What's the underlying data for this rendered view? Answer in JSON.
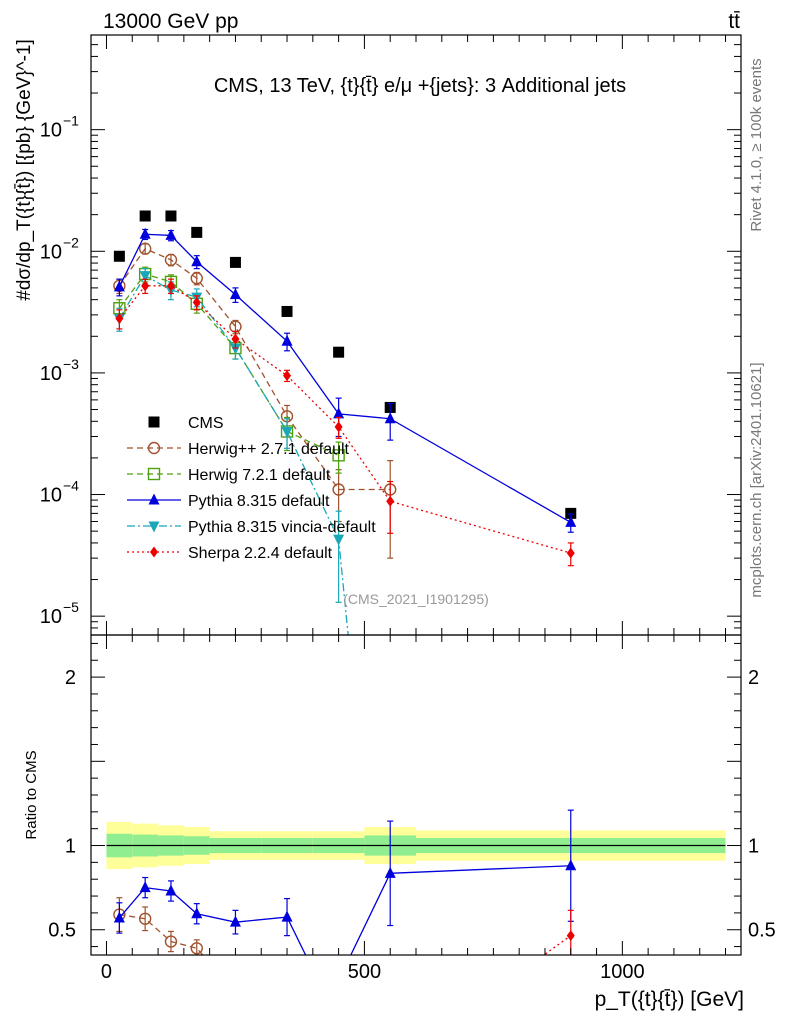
{
  "header": {
    "left": "13000 GeV pp",
    "right": "tt̄"
  },
  "side_labels": {
    "rivet": "Rivet 4.1.0, ≥ 100k events",
    "mcplots": "mcplots.cern.ch [arXiv:2401.10621]"
  },
  "chart_data": [
    {
      "type": "line",
      "panel": "main",
      "title": "CMS, 13 TeV, {t}{t̄} e/μ +{jets}: 3 Additional jets",
      "ylabel": "#dσ/dp_T({t}{t̄}) [{pb} {GeV}^-1]",
      "yscale": "log",
      "ylim": [
        7e-06,
        0.6
      ],
      "xlim": [
        -30,
        1230
      ],
      "watermark": "(CMS_2021_I1901295)",
      "legend_position": "lower-left",
      "x_ticks": [
        0,
        500,
        1000
      ],
      "y_ticks": [
        {
          "value": 1e-05,
          "label": "10",
          "exp": "−5"
        },
        {
          "value": 0.0001,
          "label": "10",
          "exp": "−4"
        },
        {
          "value": 0.001,
          "label": "10",
          "exp": "−3"
        },
        {
          "value": 0.01,
          "label": "10",
          "exp": "−2"
        },
        {
          "value": 0.1,
          "label": "10",
          "exp": "−1"
        }
      ],
      "series": [
        {
          "name": "CMS",
          "color": "#000000",
          "marker": "square",
          "line": "none",
          "x": [
            25,
            75,
            125,
            175,
            250,
            350,
            450,
            550,
            900
          ],
          "y": [
            0.0091,
            0.0195,
            0.0195,
            0.0143,
            0.0081,
            0.0032,
            0.00148,
            0.00052,
            7e-05
          ],
          "xerr": [
            25,
            25,
            25,
            25,
            50,
            50,
            50,
            50,
            300
          ]
        },
        {
          "name": "Herwig++ 2.7.1 default",
          "color": "#a0522d",
          "marker": "circle-open",
          "line": "dashed",
          "x": [
            25,
            75,
            125,
            175,
            250,
            350,
            450,
            550
          ],
          "y": [
            0.0052,
            0.0105,
            0.0085,
            0.006,
            0.0024,
            0.00044,
            0.00011,
            0.00011
          ],
          "yerr": [
            0.0007,
            0.001,
            0.0009,
            0.0007,
            0.0003,
            0.0001,
            5e-05,
            8e-05
          ]
        },
        {
          "name": "Herwig 7.2.1 default",
          "color": "#4fa00f",
          "marker": "square-open",
          "line": "dashed",
          "x": [
            25,
            75,
            125,
            175,
            250,
            350,
            450
          ],
          "y": [
            0.0034,
            0.0065,
            0.0056,
            0.0037,
            0.0016,
            0.00033,
            0.00021
          ],
          "yerr": [
            0.0006,
            0.0009,
            0.0008,
            0.0006,
            0.0003,
            0.0001,
            6e-05
          ]
        },
        {
          "name": "Pythia 8.315 default",
          "color": "#0000dd",
          "marker": "triangle-up",
          "line": "solid",
          "x": [
            25,
            75,
            125,
            175,
            250,
            350,
            450,
            550,
            900
          ],
          "y": [
            0.0051,
            0.0138,
            0.0135,
            0.0082,
            0.0044,
            0.00182,
            0.00046,
            0.00042,
            5.9e-05
          ],
          "yerr": [
            0.0008,
            0.0013,
            0.0013,
            0.001,
            0.0006,
            0.0003,
            0.00016,
            0.00014,
            1e-05
          ]
        },
        {
          "name": "Pythia 8.315 vincia-default",
          "color": "#1aa7b8",
          "marker": "triangle-down",
          "line": "dashdot",
          "x": [
            25,
            75,
            125,
            175,
            250,
            350,
            450,
            470
          ],
          "y": [
            0.0028,
            0.0063,
            0.0048,
            0.0042,
            0.0016,
            0.00033,
            4.3e-05,
            6e-06
          ],
          "yerr": [
            0.0006,
            0.0009,
            0.0008,
            0.0007,
            0.0003,
            9e-05,
            3e-05,
            0
          ]
        },
        {
          "name": "Sherpa 2.2.4 default",
          "color": "#ee0000",
          "marker": "diamond",
          "line": "dotted",
          "x": [
            25,
            75,
            125,
            175,
            250,
            350,
            450,
            550,
            900
          ],
          "y": [
            0.0028,
            0.0052,
            0.0052,
            0.0038,
            0.0019,
            0.00095,
            0.00036,
            8.8e-05,
            3.3e-05
          ],
          "yerr": [
            0.0005,
            0.0007,
            0.0007,
            0.0005,
            0.0003,
            0.0001,
            7e-05,
            4e-05,
            7e-06
          ]
        }
      ]
    },
    {
      "type": "line",
      "panel": "ratio",
      "ylabel": "Ratio to CMS",
      "xlabel": "p_T({t}{t̄}) [GeV]",
      "ylim": [
        0.35,
        2.25
      ],
      "xlim": [
        -30,
        1230
      ],
      "x_ticks": [
        0,
        500,
        1000
      ],
      "y_ticks": [
        0.5,
        1,
        2
      ],
      "uncertainty_bands": {
        "edges": [
          0,
          50,
          100,
          150,
          200,
          300,
          400,
          500,
          600,
          1200
        ],
        "inner_low": [
          0.93,
          0.935,
          0.94,
          0.945,
          0.955,
          0.955,
          0.955,
          0.94,
          0.955
        ],
        "inner_high": [
          1.07,
          1.065,
          1.06,
          1.055,
          1.045,
          1.045,
          1.045,
          1.06,
          1.045
        ],
        "outer_low": [
          0.86,
          0.87,
          0.88,
          0.89,
          0.915,
          0.915,
          0.915,
          0.89,
          0.91
        ],
        "outer_high": [
          1.14,
          1.13,
          1.12,
          1.11,
          1.085,
          1.085,
          1.085,
          1.11,
          1.09
        ],
        "inner_color": "#90ee90",
        "outer_color": "#ffff99"
      },
      "series": [
        {
          "name": "Herwig++ 2.7.1 default",
          "color": "#a0522d",
          "x": [
            25,
            75,
            125,
            175,
            230
          ],
          "y": [
            0.59,
            0.565,
            0.43,
            0.39,
            0.2
          ],
          "yerr": [
            0.1,
            0.07,
            0.06,
            0.05,
            0
          ]
        },
        {
          "name": "Pythia 8.315 default",
          "color": "#0000dd",
          "x": [
            25,
            75,
            125,
            175,
            250,
            350,
            410,
            450,
            550,
            900
          ],
          "y": [
            0.57,
            0.75,
            0.73,
            0.595,
            0.545,
            0.575,
            0.2,
            0.2,
            0.835,
            0.88
          ],
          "yerr": [
            0.09,
            0.06,
            0.06,
            0.06,
            0.07,
            0.11,
            0,
            0,
            0.31,
            0.33
          ]
        },
        {
          "name": "Sherpa 2.2.4 default",
          "color": "#ee0000",
          "x": [
            780,
            900
          ],
          "y": [
            0.2,
            0.465
          ],
          "yerr": [
            0,
            0.15
          ]
        }
      ]
    }
  ]
}
